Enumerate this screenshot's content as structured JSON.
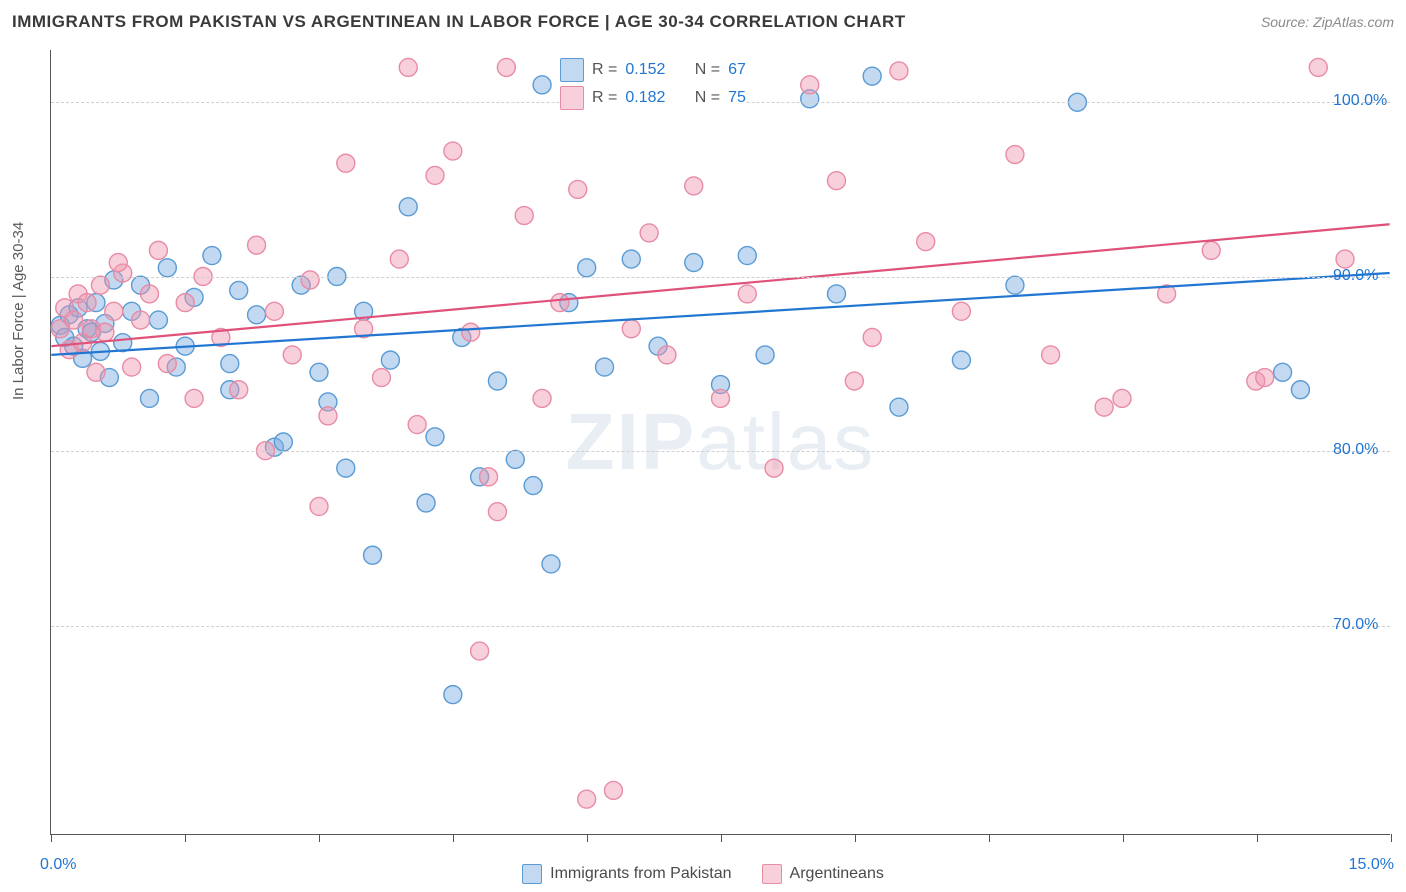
{
  "title": "IMMIGRANTS FROM PAKISTAN VS ARGENTINEAN IN LABOR FORCE | AGE 30-34 CORRELATION CHART",
  "source": "Source: ZipAtlas.com",
  "watermark_bold": "ZIP",
  "watermark_thin": "atlas",
  "chart": {
    "type": "scatter",
    "ylabel": "In Labor Force | Age 30-34",
    "xlim": [
      0,
      15
    ],
    "ylim": [
      58,
      103
    ],
    "x_tick_positions": [
      0,
      1.5,
      3.0,
      4.5,
      6.0,
      7.5,
      9.0,
      10.5,
      12.0,
      13.5,
      15.0
    ],
    "y_gridlines": [
      70,
      80,
      90,
      100
    ],
    "y_tick_labels": [
      "70.0%",
      "80.0%",
      "90.0%",
      "100.0%"
    ],
    "x_axis_label_left": "0.0%",
    "x_axis_label_right": "15.0%",
    "x_axis_label_color": "#2176d2",
    "y_axis_label_color": "#2176d2",
    "axis_color": "#555555",
    "grid_color": "#d0d0d0",
    "background_color": "#ffffff",
    "marker_radius": 9,
    "marker_stroke_width": 1.4,
    "trend_line_width": 2.2,
    "series": [
      {
        "name": "Immigrants from Pakistan",
        "fill": "rgba(120,170,225,0.45)",
        "stroke": "#5a9bd4",
        "line_color": "#2176d2",
        "R": "0.152",
        "N": "67",
        "trend": {
          "x1": 0,
          "y1": 85.5,
          "x2": 15,
          "y2": 90.2
        },
        "points": [
          [
            0.1,
            87.2
          ],
          [
            0.15,
            86.5
          ],
          [
            0.2,
            87.8
          ],
          [
            0.25,
            86.0
          ],
          [
            0.3,
            88.2
          ],
          [
            0.35,
            85.3
          ],
          [
            0.4,
            87.0
          ],
          [
            0.45,
            86.8
          ],
          [
            0.5,
            88.5
          ],
          [
            0.55,
            85.7
          ],
          [
            0.6,
            87.3
          ],
          [
            0.7,
            89.8
          ],
          [
            0.8,
            86.2
          ],
          [
            0.9,
            88.0
          ],
          [
            1.0,
            89.5
          ],
          [
            1.1,
            83.0
          ],
          [
            1.2,
            87.5
          ],
          [
            1.3,
            90.5
          ],
          [
            1.5,
            86.0
          ],
          [
            1.6,
            88.8
          ],
          [
            1.8,
            91.2
          ],
          [
            2.0,
            85.0
          ],
          [
            2.1,
            89.2
          ],
          [
            2.3,
            87.8
          ],
          [
            2.5,
            80.2
          ],
          [
            2.6,
            80.5
          ],
          [
            2.8,
            89.5
          ],
          [
            3.0,
            84.5
          ],
          [
            3.1,
            82.8
          ],
          [
            3.3,
            79.0
          ],
          [
            3.5,
            88.0
          ],
          [
            3.6,
            74.0
          ],
          [
            3.8,
            85.2
          ],
          [
            4.0,
            94.0
          ],
          [
            4.2,
            77.0
          ],
          [
            4.5,
            66.0
          ],
          [
            4.6,
            86.5
          ],
          [
            4.8,
            78.5
          ],
          [
            5.0,
            84.0
          ],
          [
            5.2,
            79.5
          ],
          [
            5.4,
            78.0
          ],
          [
            5.6,
            73.5
          ],
          [
            5.8,
            88.5
          ],
          [
            6.0,
            90.5
          ],
          [
            6.2,
            84.8
          ],
          [
            6.5,
            91.0
          ],
          [
            6.8,
            86.0
          ],
          [
            7.2,
            90.8
          ],
          [
            7.5,
            83.8
          ],
          [
            7.8,
            91.2
          ],
          [
            8.0,
            85.5
          ],
          [
            8.5,
            100.2
          ],
          [
            8.8,
            89.0
          ],
          [
            9.2,
            101.5
          ],
          [
            9.5,
            82.5
          ],
          [
            10.2,
            85.2
          ],
          [
            10.8,
            89.5
          ],
          [
            13.8,
            84.5
          ],
          [
            14.0,
            83.5
          ],
          [
            4.3,
            80.8
          ],
          [
            3.2,
            90.0
          ],
          [
            2.0,
            83.5
          ],
          [
            1.4,
            84.8
          ],
          [
            0.65,
            84.2
          ],
          [
            5.5,
            101.0
          ],
          [
            6.3,
            101.8
          ],
          [
            11.5,
            100.0
          ]
        ]
      },
      {
        "name": "Argentineans",
        "fill": "rgba(240,150,175,0.45)",
        "stroke": "#e88ba5",
        "line_color": "#e0517a",
        "R": "0.182",
        "N": "75",
        "trend": {
          "x1": 0,
          "y1": 86.0,
          "x2": 15,
          "y2": 93.0
        },
        "points": [
          [
            0.1,
            87.0
          ],
          [
            0.15,
            88.2
          ],
          [
            0.2,
            85.8
          ],
          [
            0.25,
            87.5
          ],
          [
            0.3,
            89.0
          ],
          [
            0.35,
            86.2
          ],
          [
            0.4,
            88.5
          ],
          [
            0.45,
            87.0
          ],
          [
            0.5,
            84.5
          ],
          [
            0.55,
            89.5
          ],
          [
            0.6,
            86.8
          ],
          [
            0.7,
            88.0
          ],
          [
            0.8,
            90.2
          ],
          [
            0.9,
            84.8
          ],
          [
            1.0,
            87.5
          ],
          [
            1.1,
            89.0
          ],
          [
            1.2,
            91.5
          ],
          [
            1.3,
            85.0
          ],
          [
            1.5,
            88.5
          ],
          [
            1.7,
            90.0
          ],
          [
            1.9,
            86.5
          ],
          [
            2.1,
            83.5
          ],
          [
            2.3,
            91.8
          ],
          [
            2.5,
            88.0
          ],
          [
            2.7,
            85.5
          ],
          [
            2.9,
            89.8
          ],
          [
            3.1,
            82.0
          ],
          [
            3.3,
            96.5
          ],
          [
            3.5,
            87.0
          ],
          [
            3.7,
            84.2
          ],
          [
            3.9,
            91.0
          ],
          [
            4.1,
            81.5
          ],
          [
            4.3,
            95.8
          ],
          [
            4.5,
            97.2
          ],
          [
            4.7,
            86.8
          ],
          [
            4.9,
            78.5
          ],
          [
            5.1,
            102.0
          ],
          [
            5.3,
            93.5
          ],
          [
            5.5,
            83.0
          ],
          [
            5.7,
            88.5
          ],
          [
            5.9,
            95.0
          ],
          [
            6.1,
            101.8
          ],
          [
            6.3,
            60.5
          ],
          [
            6.5,
            87.0
          ],
          [
            6.7,
            92.5
          ],
          [
            6.9,
            85.5
          ],
          [
            7.2,
            95.2
          ],
          [
            7.5,
            83.0
          ],
          [
            7.8,
            89.0
          ],
          [
            8.1,
            79.0
          ],
          [
            8.5,
            101.0
          ],
          [
            8.8,
            95.5
          ],
          [
            9.2,
            86.5
          ],
          [
            9.5,
            101.8
          ],
          [
            9.8,
            92.0
          ],
          [
            10.2,
            88.0
          ],
          [
            10.8,
            97.0
          ],
          [
            11.2,
            85.5
          ],
          [
            11.8,
            82.5
          ],
          [
            12.5,
            89.0
          ],
          [
            13.0,
            91.5
          ],
          [
            13.5,
            84.0
          ],
          [
            13.6,
            84.2
          ],
          [
            14.2,
            102.0
          ],
          [
            4.8,
            68.5
          ],
          [
            5.0,
            76.5
          ],
          [
            3.0,
            76.8
          ],
          [
            2.4,
            80.0
          ],
          [
            1.6,
            83.0
          ],
          [
            0.75,
            90.8
          ],
          [
            6.0,
            60.0
          ],
          [
            4.0,
            102.0
          ],
          [
            9.0,
            84.0
          ],
          [
            12.0,
            83.0
          ],
          [
            14.5,
            91.0
          ]
        ]
      }
    ]
  },
  "legend_bottom": [
    {
      "label": "Immigrants from Pakistan",
      "fill": "rgba(120,170,225,0.45)",
      "stroke": "#5a9bd4"
    },
    {
      "label": "Argentineans",
      "fill": "rgba(240,150,175,0.45)",
      "stroke": "#e88ba5"
    }
  ]
}
